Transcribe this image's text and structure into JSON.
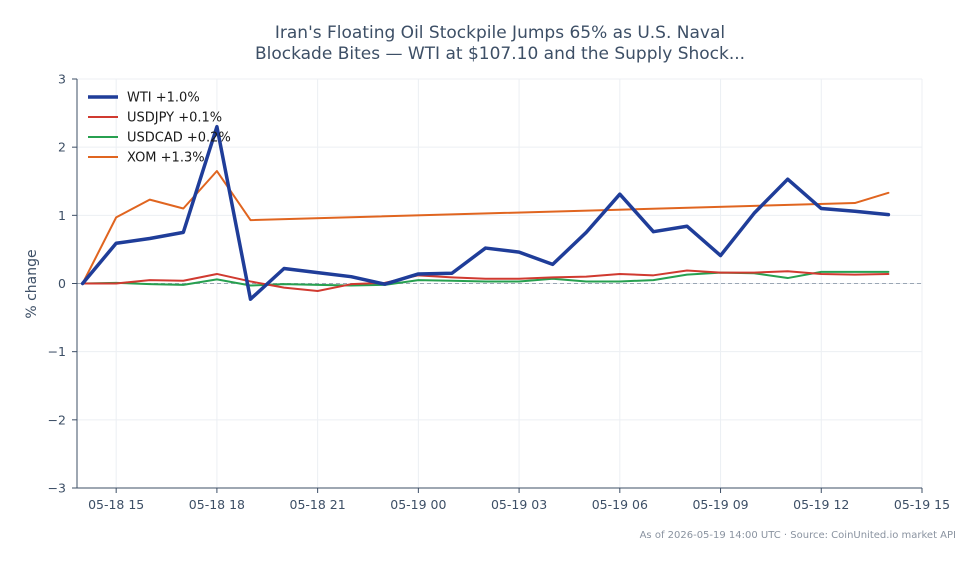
{
  "chart_data": {
    "type": "line",
    "title_lines": [
      "Iran's Floating Oil Stockpile Jumps 65% as U.S. Naval",
      "Blockade Bites — WTI at $107.10 and the Supply Shock..."
    ],
    "xlabel": "",
    "ylabel": "% change",
    "ylim": [
      -3,
      3
    ],
    "xlim": [
      "05-18 13:50",
      "05-19 15:00"
    ],
    "y_ticks": [
      {
        "value": 3,
        "label": "3"
      },
      {
        "value": 2,
        "label": "2"
      },
      {
        "value": 1,
        "label": "1"
      },
      {
        "value": 0,
        "label": "0"
      },
      {
        "value": -1,
        "label": "−1"
      },
      {
        "value": -2,
        "label": "−2"
      },
      {
        "value": -3,
        "label": "−3"
      }
    ],
    "x_ticks": [
      {
        "time": "05-18 15:00",
        "label": "05-18 15"
      },
      {
        "time": "05-18 18:00",
        "label": "05-18 18"
      },
      {
        "time": "05-18 21:00",
        "label": "05-18 21"
      },
      {
        "time": "05-19 00:00",
        "label": "05-19 00"
      },
      {
        "time": "05-19 03:00",
        "label": "05-19 03"
      },
      {
        "time": "05-19 06:00",
        "label": "05-19 06"
      },
      {
        "time": "05-19 09:00",
        "label": "05-19 09"
      },
      {
        "time": "05-19 12:00",
        "label": "05-19 12"
      },
      {
        "time": "05-19 15:00",
        "label": "05-19 15"
      }
    ],
    "grid": true,
    "reference_line": 0,
    "legend_position": "top-left",
    "series": [
      {
        "name": "WTI +1.0%",
        "color": "#1f3d99",
        "width": 3.5,
        "points": [
          [
            "05-18 14:00",
            0.0
          ],
          [
            "05-18 15:00",
            0.59
          ],
          [
            "05-18 16:00",
            0.66
          ],
          [
            "05-18 17:00",
            0.75
          ],
          [
            "05-18 18:00",
            2.3
          ],
          [
            "05-18 19:00",
            -0.23
          ],
          [
            "05-18 20:00",
            0.22
          ],
          [
            "05-18 21:00",
            0.16
          ],
          [
            "05-18 22:00",
            0.1
          ],
          [
            "05-18 23:00",
            -0.01
          ],
          [
            "05-19 00:00",
            0.14
          ],
          [
            "05-19 01:00",
            0.15
          ],
          [
            "05-19 02:00",
            0.52
          ],
          [
            "05-19 03:00",
            0.46
          ],
          [
            "05-19 04:00",
            0.28
          ],
          [
            "05-19 05:00",
            0.75
          ],
          [
            "05-19 06:00",
            1.31
          ],
          [
            "05-19 07:00",
            0.76
          ],
          [
            "05-19 08:00",
            0.84
          ],
          [
            "05-19 09:00",
            0.41
          ],
          [
            "05-19 10:00",
            1.03
          ],
          [
            "05-19 11:00",
            1.53
          ],
          [
            "05-19 12:00",
            1.1
          ],
          [
            "05-19 13:00",
            1.06
          ],
          [
            "05-19 14:00",
            1.01
          ]
        ]
      },
      {
        "name": "USDJPY +0.1%",
        "color": "#d03a30",
        "width": 2,
        "points": [
          [
            "05-18 14:00",
            0.0
          ],
          [
            "05-18 15:00",
            0.0
          ],
          [
            "05-18 16:00",
            0.05
          ],
          [
            "05-18 17:00",
            0.04
          ],
          [
            "05-18 18:00",
            0.14
          ],
          [
            "05-18 19:00",
            0.03
          ],
          [
            "05-18 20:00",
            -0.06
          ],
          [
            "05-18 21:00",
            -0.11
          ],
          [
            "05-18 22:00",
            -0.01
          ],
          [
            "05-18 23:00",
            0.01
          ],
          [
            "05-19 00:00",
            0.12
          ],
          [
            "05-19 01:00",
            0.09
          ],
          [
            "05-19 02:00",
            0.07
          ],
          [
            "05-19 03:00",
            0.07
          ],
          [
            "05-19 04:00",
            0.09
          ],
          [
            "05-19 05:00",
            0.1
          ],
          [
            "05-19 06:00",
            0.14
          ],
          [
            "05-19 07:00",
            0.12
          ],
          [
            "05-19 08:00",
            0.19
          ],
          [
            "05-19 09:00",
            0.16
          ],
          [
            "05-19 10:00",
            0.16
          ],
          [
            "05-19 11:00",
            0.18
          ],
          [
            "05-19 12:00",
            0.14
          ],
          [
            "05-19 13:00",
            0.13
          ],
          [
            "05-19 14:00",
            0.14
          ]
        ]
      },
      {
        "name": "USDCAD +0.2%",
        "color": "#27a050",
        "width": 2,
        "points": [
          [
            "05-18 14:00",
            0.0
          ],
          [
            "05-18 15:00",
            0.01
          ],
          [
            "05-18 16:00",
            -0.01
          ],
          [
            "05-18 17:00",
            -0.02
          ],
          [
            "05-18 18:00",
            0.06
          ],
          [
            "05-18 19:00",
            -0.03
          ],
          [
            "05-18 20:00",
            -0.01
          ],
          [
            "05-18 21:00",
            -0.02
          ],
          [
            "05-18 22:00",
            -0.03
          ],
          [
            "05-18 23:00",
            -0.02
          ],
          [
            "05-19 00:00",
            0.05
          ],
          [
            "05-19 01:00",
            0.04
          ],
          [
            "05-19 02:00",
            0.03
          ],
          [
            "05-19 03:00",
            0.03
          ],
          [
            "05-19 04:00",
            0.07
          ],
          [
            "05-19 05:00",
            0.03
          ],
          [
            "05-19 06:00",
            0.03
          ],
          [
            "05-19 07:00",
            0.05
          ],
          [
            "05-19 08:00",
            0.13
          ],
          [
            "05-19 09:00",
            0.16
          ],
          [
            "05-19 10:00",
            0.15
          ],
          [
            "05-19 11:00",
            0.08
          ],
          [
            "05-19 12:00",
            0.17
          ],
          [
            "05-19 13:00",
            0.17
          ],
          [
            "05-19 14:00",
            0.17
          ]
        ]
      },
      {
        "name": "XOM +1.3%",
        "color": "#e06520",
        "width": 2,
        "points": [
          [
            "05-18 14:00",
            0.0
          ],
          [
            "05-18 15:00",
            0.97
          ],
          [
            "05-18 16:00",
            1.23
          ],
          [
            "05-18 17:00",
            1.1
          ],
          [
            "05-18 18:00",
            1.65
          ],
          [
            "05-18 19:00",
            0.93
          ],
          [
            "05-19 13:00",
            1.18
          ],
          [
            "05-19 14:00",
            1.33
          ]
        ]
      }
    ],
    "footer": "As of 2026-05-19 14:00 UTC · Source: CoinUnited.io market API"
  }
}
